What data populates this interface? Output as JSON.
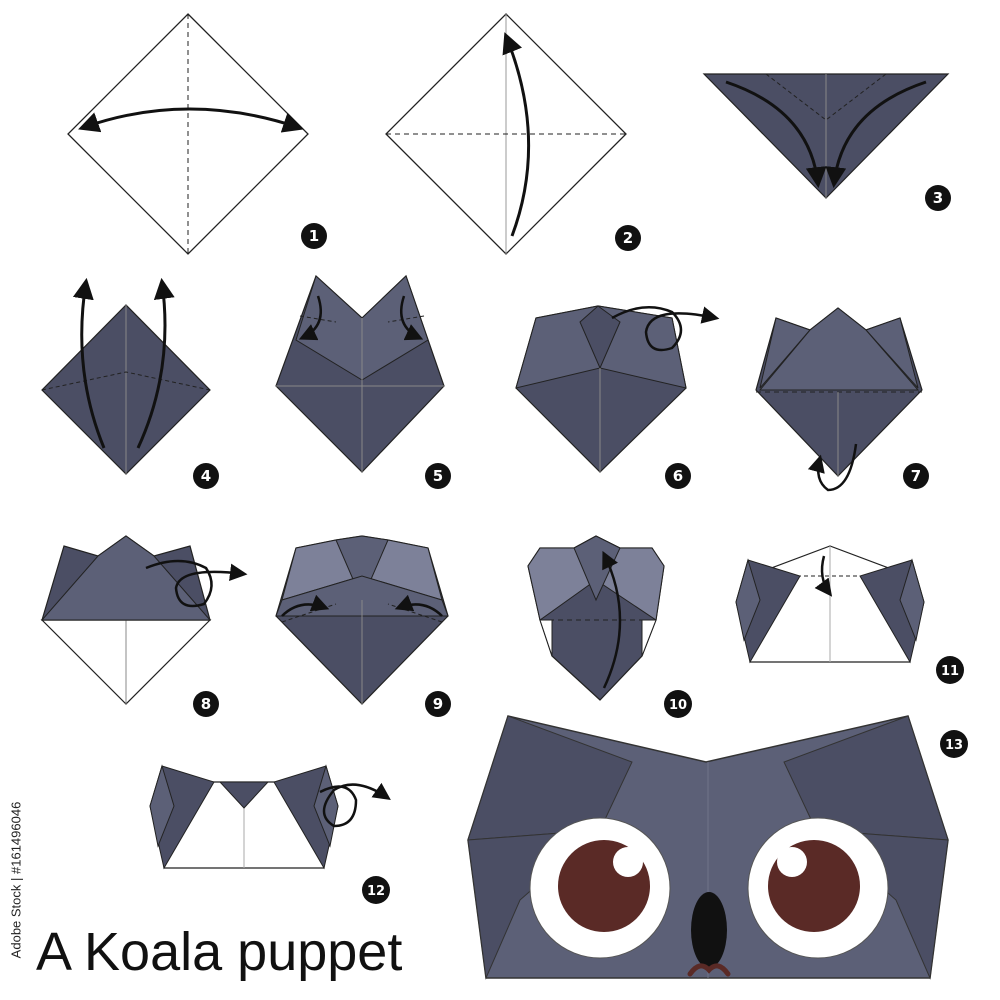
{
  "title": "A Koala puppet",
  "side_id": "Adobe Stock | #161496046",
  "colors": {
    "paper_dark": "#4b4e64",
    "paper_mid": "#5c6077",
    "paper_light": "#7d8199",
    "white": "#ffffff",
    "eye_iris": "#5a2a26",
    "nose": "#111111",
    "mouth": "#5a2a26"
  },
  "steps": [
    {
      "number": "1"
    },
    {
      "number": "2"
    },
    {
      "number": "3"
    },
    {
      "number": "4"
    },
    {
      "number": "5"
    },
    {
      "number": "6"
    },
    {
      "number": "7"
    },
    {
      "number": "8"
    },
    {
      "number": "9"
    },
    {
      "number": "10"
    },
    {
      "number": "11"
    },
    {
      "number": "12"
    },
    {
      "number": "13"
    }
  ]
}
